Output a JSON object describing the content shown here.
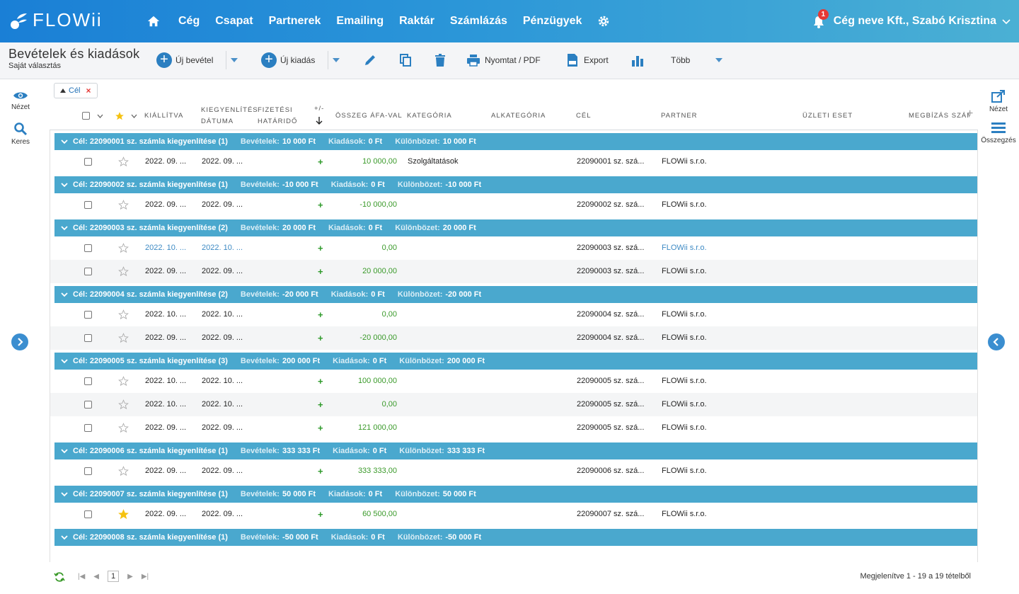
{
  "app": {
    "logo_text": "FLOWii"
  },
  "nav": {
    "items": [
      "Cég",
      "Csapat",
      "Partnerek",
      "Emailing",
      "Raktár",
      "Számlázás",
      "Pénzügyek"
    ],
    "home_icon": "home-icon",
    "settings_icon": "gear-icon"
  },
  "user": {
    "name": "Cég neve Kft., Szabó Krisztina",
    "notifications": "1"
  },
  "toolbar": {
    "title": "Bevételek és kiadások",
    "subtitle": "Saját választás",
    "new_income": "Új bevétel",
    "new_expense": "Új kiadás",
    "print": "Nyomtat / PDF",
    "export": "Export",
    "more": "Több"
  },
  "left_rail": {
    "view": "Nézet",
    "search": "Keres"
  },
  "right_rail": {
    "view": "Nézet",
    "summary": "Összegzés"
  },
  "filter": {
    "chip_label": "Cél"
  },
  "columns": {
    "issued": "Kiállítva",
    "settle_date_1": "Kiegyenlítés",
    "settle_date_2": "dátuma",
    "due_1": "Fizetési",
    "due_2": "határidő",
    "sign": "+/-",
    "amount": "Összeg ÁFA-val",
    "category": "Kategória",
    "subcategory": "Alkategória",
    "goal": "Cél",
    "partner": "Partner",
    "business": "Üzleti eset",
    "order": "Megbízás szám"
  },
  "group_labels": {
    "income": "Bevételek:",
    "expense": "Kiadások:",
    "diff": "Különbözet:"
  },
  "groups": [
    {
      "title": "Cél: 22090001 sz. számla kiegyenlítése (1)",
      "income": "10 000 Ft",
      "expense": "0 Ft",
      "diff": "10 000 Ft",
      "rows": [
        {
          "issued": "2022. 09. ...",
          "settled": "2022. 09. ...",
          "sign": "+",
          "amount": "10 000,00",
          "category": "Szolgáltatások",
          "goal": "22090001 sz. szá...",
          "partner": "FLOWii s.r.o.",
          "starred": false,
          "link": false
        }
      ]
    },
    {
      "title": "Cél: 22090002 sz. számla kiegyenlítése (1)",
      "income": "-10 000 Ft",
      "expense": "0 Ft",
      "diff": "-10 000 Ft",
      "rows": [
        {
          "issued": "2022. 09. ...",
          "settled": "2022. 09. ...",
          "sign": "+",
          "amount": "-10 000,00",
          "category": "",
          "goal": "22090002 sz. szá...",
          "partner": "FLOWii s.r.o.",
          "starred": false,
          "link": false
        }
      ]
    },
    {
      "title": "Cél: 22090003 sz. számla kiegyenlítése (2)",
      "income": "20 000 Ft",
      "expense": "0 Ft",
      "diff": "20 000 Ft",
      "rows": [
        {
          "issued": "2022. 10. ...",
          "settled": "2022. 10. ...",
          "sign": "+",
          "amount": "0,00",
          "category": "",
          "goal": "22090003 sz. szá...",
          "partner": "FLOWii s.r.o.",
          "starred": false,
          "link": true
        },
        {
          "issued": "2022. 09. ...",
          "settled": "2022. 09. ...",
          "sign": "+",
          "amount": "20 000,00",
          "category": "",
          "goal": "22090003 sz. szá...",
          "partner": "FLOWii s.r.o.",
          "starred": false,
          "link": false
        }
      ]
    },
    {
      "title": "Cél: 22090004 sz. számla kiegyenlítése (2)",
      "income": "-20 000 Ft",
      "expense": "0 Ft",
      "diff": "-20 000 Ft",
      "rows": [
        {
          "issued": "2022. 10. ...",
          "settled": "2022. 10. ...",
          "sign": "+",
          "amount": "0,00",
          "category": "",
          "goal": "22090004 sz. szá...",
          "partner": "FLOWii s.r.o.",
          "starred": false,
          "link": false
        },
        {
          "issued": "2022. 09. ...",
          "settled": "2022. 09. ...",
          "sign": "+",
          "amount": "-20 000,00",
          "category": "",
          "goal": "22090004 sz. szá...",
          "partner": "FLOWii s.r.o.",
          "starred": false,
          "link": false
        }
      ]
    },
    {
      "title": "Cél: 22090005 sz. számla kiegyenlítése (3)",
      "income": "200 000 Ft",
      "expense": "0 Ft",
      "diff": "200 000 Ft",
      "rows": [
        {
          "issued": "2022. 10. ...",
          "settled": "2022. 10. ...",
          "sign": "+",
          "amount": "100 000,00",
          "category": "",
          "goal": "22090005 sz. szá...",
          "partner": "FLOWii s.r.o.",
          "starred": false,
          "link": false
        },
        {
          "issued": "2022. 10. ...",
          "settled": "2022. 10. ...",
          "sign": "+",
          "amount": "0,00",
          "category": "",
          "goal": "22090005 sz. szá...",
          "partner": "FLOWii s.r.o.",
          "starred": false,
          "link": false
        },
        {
          "issued": "2022. 09. ...",
          "settled": "2022. 09. ...",
          "sign": "+",
          "amount": "121 000,00",
          "category": "",
          "goal": "22090005 sz. szá...",
          "partner": "FLOWii s.r.o.",
          "starred": false,
          "link": false
        }
      ]
    },
    {
      "title": "Cél: 22090006 sz. számla kiegyenlítése (1)",
      "income": "333 333 Ft",
      "expense": "0 Ft",
      "diff": "333 333 Ft",
      "rows": [
        {
          "issued": "2022. 09. ...",
          "settled": "2022. 09. ...",
          "sign": "+",
          "amount": "333 333,00",
          "category": "",
          "goal": "22090006 sz. szá...",
          "partner": "FLOWii s.r.o.",
          "starred": false,
          "link": false
        }
      ]
    },
    {
      "title": "Cél: 22090007 sz. számla kiegyenlítése (1)",
      "income": "50 000 Ft",
      "expense": "0 Ft",
      "diff": "50 000 Ft",
      "rows": [
        {
          "issued": "2022. 09. ...",
          "settled": "2022. 09. ...",
          "sign": "+",
          "amount": "60 500,00",
          "category": "",
          "goal": "22090007 sz. szá...",
          "partner": "FLOWii s.r.o.",
          "starred": true,
          "link": false
        }
      ]
    },
    {
      "title": "Cél: 22090008 sz. számla kiegyenlítése (1)",
      "income": "-50 000 Ft",
      "expense": "0 Ft",
      "diff": "-50 000 Ft",
      "rows": []
    }
  ],
  "footer": {
    "page": "1",
    "info": "Megjelenítve 1 - 19 a 19 tételből"
  },
  "colors": {
    "accent": "#2b7fc1",
    "group_bar": "#4aa8ce",
    "positive": "#3a9a2a",
    "link": "#3d8ac4"
  }
}
